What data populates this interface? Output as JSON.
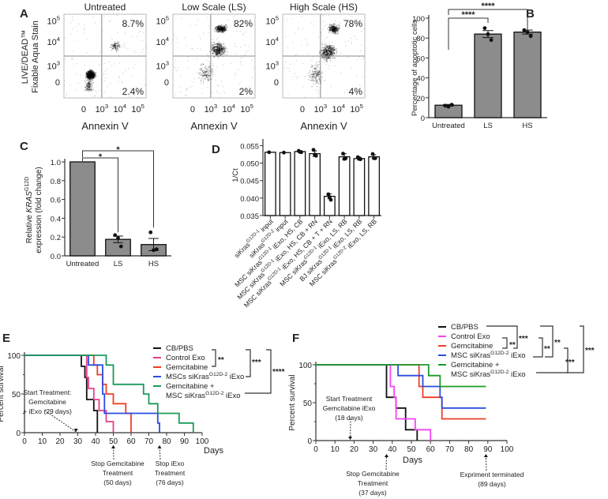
{
  "panel_labels": {
    "A": "A",
    "B": "B",
    "C": "C",
    "D": "D",
    "E": "E",
    "F": "F"
  },
  "chart_data": [
    {
      "id": "A",
      "type": "scatter",
      "title": "Flow cytometry apoptosis quadrants",
      "ylabel_line1": "LIVE/DEAD™",
      "ylabel_line2": "Fixable Aqua Stain",
      "xlabel": "Annexin V",
      "xticks": [
        "0",
        "10^3",
        "10^4",
        "10^5"
      ],
      "yticks": [
        "0",
        "10^3",
        "10^4",
        "10^5"
      ],
      "plots": [
        {
          "title": "Untreated",
          "upper_right": "8.7%",
          "lower_right": "2.4%"
        },
        {
          "title": "Low Scale (LS)",
          "upper_right": "82%",
          "lower_right": "2%"
        },
        {
          "title": "High Scale (HS)",
          "upper_right": "78%",
          "lower_right": "4%"
        }
      ]
    },
    {
      "id": "B",
      "type": "bar",
      "categories": [
        "Untreated",
        "LS",
        "HS"
      ],
      "values": [
        12.5,
        84,
        86
      ],
      "errors": [
        0.8,
        3.5,
        2
      ],
      "points": [
        [
          12,
          11,
          13
        ],
        [
          90,
          84,
          78
        ],
        [
          88,
          86,
          82
        ]
      ],
      "ylabel": "Percentage of apoptotic cells",
      "ylim": [
        0,
        100
      ],
      "yticks": [
        0,
        20,
        40,
        60,
        80,
        100
      ],
      "significance": [
        {
          "from": "Untreated",
          "to": "LS",
          "label": "****"
        },
        {
          "from": "Untreated",
          "to": "HS",
          "label": "****"
        }
      ]
    },
    {
      "id": "C",
      "type": "bar",
      "categories": [
        "Untreated",
        "LS",
        "HS"
      ],
      "values": [
        1.0,
        0.175,
        0.12
      ],
      "errors": [
        0,
        0.035,
        0.065
      ],
      "points": [
        [],
        [
          0.22,
          0.19,
          0.1
        ],
        [
          0.25,
          0.06,
          0.07
        ]
      ],
      "ylabel_line1": "Relative KRAS G12D",
      "ylabel_line2": "expression (fold change)",
      "ylim": [
        0,
        1.0
      ],
      "yticks": [
        "0.0",
        "0.2",
        "0.4",
        "0.6",
        "0.8",
        "1.0"
      ],
      "significance": [
        {
          "from": "Untreated",
          "to": "LS",
          "label": "*"
        },
        {
          "from": "Untreated",
          "to": "HS",
          "label": "*"
        }
      ]
    },
    {
      "id": "D",
      "type": "bar",
      "ylabel": "1/Ct",
      "ylim": [
        0.035,
        0.056
      ],
      "yticks": [
        "0.035",
        "0.040",
        "0.045",
        "0.050",
        "0.055"
      ],
      "categories": [
        "siKras G12D-1 input",
        "siKras G12D-2 input",
        "MSC siKras G12D-1 iExo, HS, CB",
        "MSC siKras G12D-1 iExo, HS, CB + RN",
        "MSC siKras G12D-1 iExo, HS, CB + T + RN",
        "MSC siKras G12D-1 iExo, LS, RB",
        "BJ siKras G12D-1 iExo, LS, RB",
        "MSC siKras G12D-2 iExo, LS, RB"
      ],
      "values": [
        0.0531,
        0.053,
        0.0533,
        0.0527,
        0.0405,
        0.0518,
        0.0513,
        0.0518
      ],
      "errors": [
        0,
        0,
        0.0003,
        0.0008,
        0.0007,
        0.0009,
        0.0004,
        0.0006
      ],
      "points": [
        [
          0.0531
        ],
        [
          0.053
        ],
        [
          0.0535,
          0.0532,
          0.0531
        ],
        [
          0.0538,
          0.0524,
          0.0521
        ],
        [
          0.0411,
          0.0403,
          0.0395
        ],
        [
          0.0527,
          0.0512,
          0.0514
        ],
        [
          0.0517,
          0.0512,
          0.0511
        ],
        [
          0.0526,
          0.0514,
          0.0514
        ]
      ]
    },
    {
      "id": "E",
      "type": "line",
      "subtype": "kaplan-meier",
      "ylabel": "Percent survival",
      "xlabel": "Days",
      "xlim": [
        0,
        100
      ],
      "ylim": [
        0,
        100
      ],
      "xticks": [
        0,
        10,
        20,
        30,
        40,
        50,
        60,
        70,
        80,
        90,
        100
      ],
      "yticks": [
        0,
        50,
        100
      ],
      "series": [
        {
          "name": "CB/PBS",
          "color": "#111111",
          "steps": [
            [
              0,
              100
            ],
            [
              32,
              100
            ],
            [
              32,
              85.7
            ],
            [
              34,
              85.7
            ],
            [
              34,
              71.4
            ],
            [
              35,
              71.4
            ],
            [
              35,
              42.9
            ],
            [
              39,
              42.9
            ],
            [
              39,
              28.6
            ],
            [
              41,
              28.6
            ],
            [
              41,
              0
            ]
          ]
        },
        {
          "name": "Control Exo",
          "color": "#e83e8c",
          "steps": [
            [
              0,
              100
            ],
            [
              35,
              100
            ],
            [
              35,
              71.4
            ],
            [
              36,
              71.4
            ],
            [
              36,
              57.1
            ],
            [
              39,
              57.1
            ],
            [
              39,
              42.9
            ],
            [
              42,
              42.9
            ],
            [
              42,
              28.6
            ],
            [
              46,
              28.6
            ],
            [
              46,
              14.3
            ],
            [
              50,
              14.3
            ],
            [
              50,
              0
            ]
          ]
        },
        {
          "name": "Gemcitabine",
          "color": "#f03c28",
          "steps": [
            [
              0,
              100
            ],
            [
              39,
              100
            ],
            [
              39,
              87.5
            ],
            [
              41,
              87.5
            ],
            [
              41,
              75
            ],
            [
              44,
              75
            ],
            [
              44,
              62.5
            ],
            [
              46,
              62.5
            ],
            [
              46,
              50
            ],
            [
              50,
              50
            ],
            [
              50,
              37.5
            ],
            [
              57,
              37.5
            ],
            [
              57,
              25
            ],
            [
              60,
              25
            ],
            [
              60,
              0
            ]
          ]
        },
        {
          "name": "MSCs siKras G12D-2 iExo",
          "color": "#2a4de0",
          "steps": [
            [
              0,
              100
            ],
            [
              36,
              100
            ],
            [
              36,
              87.5
            ],
            [
              44,
              87.5
            ],
            [
              44,
              50
            ],
            [
              45,
              50
            ],
            [
              45,
              25
            ],
            [
              75,
              25
            ],
            [
              75,
              12.5
            ],
            [
              76,
              12.5
            ],
            [
              76,
              0
            ]
          ]
        },
        {
          "name": "Gemcitabine + MSC siKras G12D-2 iExo",
          "color": "#1d9a5a",
          "steps": [
            [
              0,
              100
            ],
            [
              46,
              100
            ],
            [
              46,
              87.5
            ],
            [
              50,
              87.5
            ],
            [
              50,
              62.5
            ],
            [
              67,
              62.5
            ],
            [
              67,
              50
            ],
            [
              70,
              50
            ],
            [
              70,
              37.5
            ],
            [
              75,
              37.5
            ],
            [
              75,
              25
            ],
            [
              87,
              25
            ],
            [
              87,
              12.5
            ],
            [
              95,
              12.5
            ],
            [
              95,
              0
            ]
          ]
        }
      ],
      "legend_labels": [
        "CB/PBS",
        "Control Exo",
        "Gemcitabine",
        "MSCs siKras",
        "G12D-2",
        "iExo",
        "Gemcitabine +",
        "MSC siKras",
        "G12D-2",
        "iExo"
      ],
      "significance": [
        "**",
        "***",
        "****"
      ],
      "annotations": [
        {
          "text": [
            "Start Treatment:",
            "Gemcitabine",
            "+ iExo (29 days)"
          ],
          "x": 29
        },
        {
          "text": [
            "Stop Gemcitabine",
            "Treatment",
            "(50 days)"
          ],
          "x": 50
        },
        {
          "text": [
            "Stop iExo",
            "Treatment",
            "(76 days)"
          ],
          "x": 76
        }
      ]
    },
    {
      "id": "F",
      "type": "line",
      "subtype": "kaplan-meier",
      "ylabel": "Percent survival",
      "xlabel": "Days",
      "xlim": [
        0,
        100
      ],
      "ylim": [
        0,
        100
      ],
      "xticks": [
        0,
        10,
        20,
        30,
        40,
        50,
        60,
        70,
        80,
        90,
        100
      ],
      "yticks": [
        0,
        50,
        100
      ],
      "series": [
        {
          "name": "CB/PBS",
          "color": "#111111",
          "steps": [
            [
              0,
              100
            ],
            [
              37,
              100
            ],
            [
              37,
              57.1
            ],
            [
              42,
              57.1
            ],
            [
              42,
              42.9
            ],
            [
              47,
              42.9
            ],
            [
              47,
              14.3
            ],
            [
              53,
              14.3
            ],
            [
              53,
              0
            ]
          ]
        },
        {
          "name": "Control Exo",
          "color": "#f542f5",
          "steps": [
            [
              0,
              100
            ],
            [
              39,
              100
            ],
            [
              39,
              71.4
            ],
            [
              41,
              71.4
            ],
            [
              41,
              57.1
            ],
            [
              42,
              57.1
            ],
            [
              42,
              28.6
            ],
            [
              52,
              28.6
            ],
            [
              52,
              14.3
            ],
            [
              60,
              14.3
            ],
            [
              60,
              0
            ]
          ]
        },
        {
          "name": "Gemcitabine",
          "color": "#f03c28",
          "steps": [
            [
              0,
              100
            ],
            [
              54,
              100
            ],
            [
              54,
              71.4
            ],
            [
              56,
              71.4
            ],
            [
              56,
              57.1
            ],
            [
              66,
              57.1
            ],
            [
              66,
              28.6
            ],
            [
              89,
              28.6
            ]
          ]
        },
        {
          "name": "MSC siKras G12D-2 iExo",
          "color": "#2a4de0",
          "steps": [
            [
              0,
              100
            ],
            [
              43,
              100
            ],
            [
              43,
              85.7
            ],
            [
              56,
              85.7
            ],
            [
              56,
              71.4
            ],
            [
              65,
              71.4
            ],
            [
              65,
              57.1
            ],
            [
              66,
              57.1
            ],
            [
              66,
              42.9
            ],
            [
              89,
              42.9
            ]
          ]
        },
        {
          "name": "Gemcitabine + MSC siKras G12D-2 iExo",
          "color": "#1d9a2a",
          "steps": [
            [
              0,
              100
            ],
            [
              59,
              100
            ],
            [
              59,
              85.7
            ],
            [
              65,
              85.7
            ],
            [
              65,
              71.4
            ],
            [
              89,
              71.4
            ]
          ]
        }
      ],
      "legend_labels": [
        "CB/PBS",
        "Control Exo",
        "Gemcitabine",
        "MSC siKras",
        "G12D-2",
        "iExo",
        "Gemcitabine +",
        "MSC siKras",
        "G12D-2",
        "iExo"
      ],
      "significance": [
        "**",
        "***",
        "**",
        "**",
        "***",
        "***"
      ],
      "annotations": [
        {
          "text": [
            "Start Treatment",
            "Gemcitabine iExo",
            "(18 days)"
          ],
          "x": 18
        },
        {
          "text": [
            "Stop Gemcitabine",
            "Treatment",
            "(37 days)"
          ],
          "x": 37
        },
        {
          "text": [
            "Expriment terminated",
            "(89 days)"
          ],
          "x": 89
        }
      ]
    }
  ]
}
